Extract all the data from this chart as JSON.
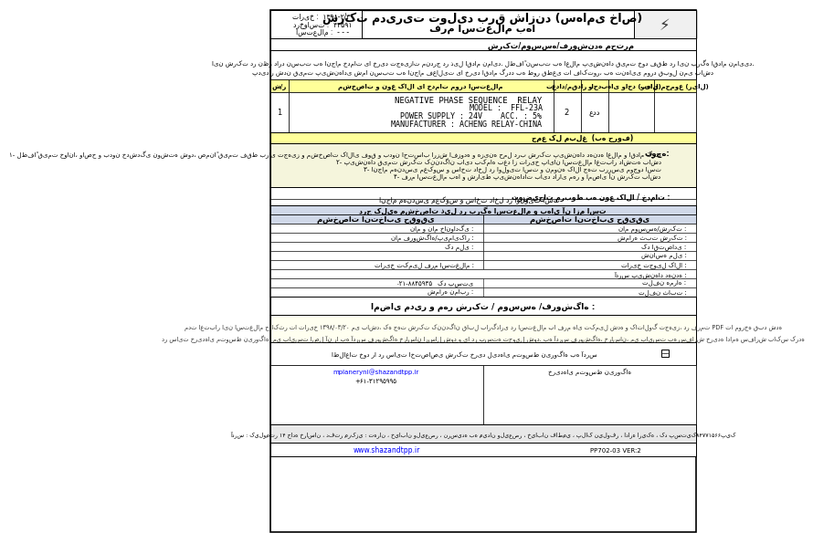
{
  "title_company": "شرکت مدیریت تولید برق شازند (سهامی خاص)",
  "title_form": "فرم استعلام بها",
  "date_label": "تاریخ :",
  "date_value": "۱۳۹۸-۲/۳۰",
  "request_label": "درخواست :",
  "request_value": "۴۴۵۹۱",
  "inquiry_label": "استعلام :",
  "inquiry_value": "- - -",
  "section_seller": "شرکت/موسسه/فروشنده محترم",
  "intro_text": "این شرکت در نظر دارد نسبت به انجام خدمات یا خرید تجهیزات مندرج در ذیل اقدام نماید. لطفاً به اعلام پیشنهاد خود فقط در این برگه اقدام نمایید. لازم به ذکر است در صورت پدیدار شدن قیمت پیشنهادی شما نسبت به انجام فعالیت یا خرید اقدام گردد به طور قطعی تا فاکتور، به تنهایی مورد قبول نمی باشد",
  "col_headers": [
    "ش/ر",
    "مشخصات و نوع کالا یا خدمات مورد استعلام",
    "تعداد/مقدار",
    "واحد",
    "بهای واحد (ریال)",
    "بهای مجموع (ریال)"
  ],
  "item_row_no": "1",
  "item_qty": "2",
  "item_unit": "عدد",
  "item_desc_line1": "NEGATIVE PHASE SEQUENCE  RELAY",
  "item_desc_line2": "MODEL :  FFL-23A",
  "item_desc_line3": "POWER SUPPLY : 24V    ACC. : 5%",
  "item_desc_line4": "MANUFACTURER : ACHENG RELAY-CHINA",
  "total_label": "جمع کل مبلغ  (به حروف)",
  "note_title": "توجه:",
  "note1": "۱- لطفاً قیمت خوانا، واضح و بدون خدشدگی نوشته شود، ضمناً قیمت فقط برای تجهیز و مشخصات کالای فوق و بدون احتساب ارزش افزوده و هزینه حمل درب شرکت پیشنهاد دهنده اعلام و اقدام گردد",
  "note2": "۲- پیشنهاد قیمت شرکت کنندگان باید بکماه بعد از تاریخ پایان استعلام اعتبار داشته باشد",
  "note3": "۳- انجام مهندسی معکوس و ساخت داخل در اولویت است و نمونه کالا جهت بررسی موجود است",
  "note4": "۴- فرم استعلام بها و شرایط پیشنهادات باید دارای مهر و امضای آن شرکت باشد",
  "desc_services_label": "توضیحات مربوط به نوع کالا / خدمات :",
  "desc_services_text": "انجام مهندسی معکوس و ساخت داخل در اولویت است",
  "watermark_text": "درج کلیه مشخصات ذیل در برگه استعلام و بهای آن ازم است",
  "seller_info_title1": "مشخصات انتخابی حقیقی",
  "seller_info_title2": "مشخصات انتخابی حقوقی",
  "field_name": "نام و نام خانوادگی :",
  "field_company_name": "نام فروشگاه/پیمایکار :",
  "field_national_id": "کد ملی :",
  "field_company_name2": "نام موسسه/شرکت :",
  "field_reg_no": "شماره ثبت شرکت :",
  "field_eco": "کد اقتصادی :",
  "field_national_id2": "شناسه ملی :",
  "field_date_complete": "تاریخ تکمیل فرم استعلام :",
  "field_delivery_date": "تاریخ تحویل کالا :",
  "field_address": "آدرس پیشنهاد دهنده :",
  "field_postal": "کد پستی",
  "field_mobile": "تلفن همراه :",
  "field_tel": "تلفن ثابت :",
  "field_fax": "شماره نمابر :",
  "mobile_value": "۰۲۱-۸۸۴۵۹۳۵",
  "sign_section": "امضای مدیر و مهر شرکت / موسسه /فروشگاه :",
  "validity_text": "مدت اعتبار این استعلام حداکثر تا تاریخ ۱۳۹۸/۰۳/۲۰ می باشد، که جهت شرکت کنندگان قابل بارگذاری در استعلام با فرم های تکمیل شده و کاتالوگ تجهیز، در فرمت PDF تا مورخه قبد شده",
  "validity_text2": "در سایت خریدهای متوسط نیروگاه، می بایست اصل آن را به آدرس فروشگاه خراسان ارسال شود و یا در بسته تحویل شود. به آدرس فروشگاه، خراسان، می بایست به سفارش خریده ادامه سفارش باکس کرده",
  "checkbox_text": "اطلاعات خود را در سایت اختصاصی شرکت خرید لیدهای متوسط نیروگاه به آدرس",
  "email_label": "mplaneryni@shazandtpp.ir",
  "phone_numbers": "+۶۱-۳۱۲۹۵۹۹۵",
  "footer_text": "آدرس : کیلومتر ۱۴ جاده خراسان ، دفتر مرکزی : تهران ، خیابان ولیعصر ، نرسیده به میدان ولیعصر ، خیابان فاطمی ، پلاک نیلوفر ، اداره اریکه ، کد پستیک۸۴۷۷۱۵۶۶پیک",
  "doc_code": "PP702-03 VER:2",
  "website": "www.shazandtpp.ir"
}
